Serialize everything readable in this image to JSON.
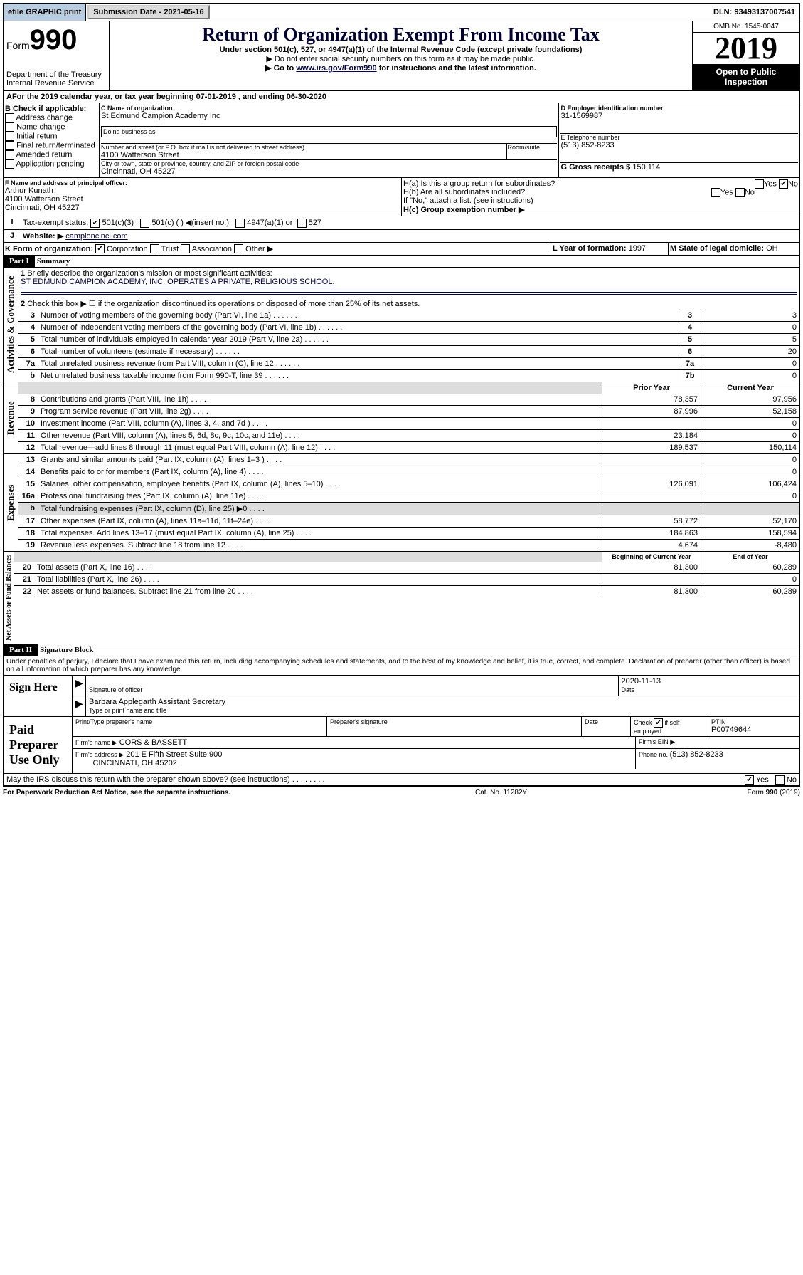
{
  "top": {
    "efile": "efile GRAPHIC print",
    "submission": "Submission Date - 2021-05-16",
    "dln": "DLN: 93493137007541"
  },
  "header": {
    "form_prefix": "Form",
    "form_no": "990",
    "dept": "Department of the Treasury\nInternal Revenue Service",
    "title": "Return of Organization Exempt From Income Tax",
    "under": "Under section 501(c), 527, or 4947(a)(1) of the Internal Revenue Code (except private foundations)",
    "note1": "▶ Do not enter social security numbers on this form as it may be made public.",
    "note2_pre": "▶ Go to ",
    "note2_link": "www.irs.gov/Form990",
    "note2_post": " for instructions and the latest information.",
    "omb": "OMB No. 1545-0047",
    "year": "2019",
    "inspect": "Open to Public Inspection"
  },
  "A": {
    "text_pre": "For the 2019 calendar year, or tax year beginning ",
    "begin": "07-01-2019",
    "mid": " , and ending ",
    "end": "06-30-2020"
  },
  "B": {
    "label": "B Check if applicable:",
    "opts": [
      "Address change",
      "Name change",
      "Initial return",
      "Final return/terminated",
      "Amended return",
      "Application pending"
    ]
  },
  "C": {
    "label": "C Name of organization",
    "name": "St Edmund Campion Academy Inc",
    "dba_label": "Doing business as",
    "addr_label": "Number and street (or P.O. box if mail is not delivered to street address)",
    "room_label": "Room/suite",
    "addr": "4100 Watterson Street",
    "city_label": "City or town, state or province, country, and ZIP or foreign postal code",
    "city": "Cincinnati, OH  45227"
  },
  "D": {
    "label": "D Employer identification number",
    "val": "31-1569987"
  },
  "E": {
    "label": "E Telephone number",
    "val": "(513) 852-8233"
  },
  "G": {
    "label": "G Gross receipts $",
    "val": "150,114"
  },
  "F": {
    "label": "F  Name and address of principal officer:",
    "name": "Arthur Kunath",
    "addr": "4100 Watterson Street",
    "city": "Cincinnati, OH  45227"
  },
  "H": {
    "a": "H(a)  Is this a group return for subordinates?",
    "b": "H(b)  Are all subordinates included?",
    "b_note": "If \"No,\" attach a list. (see instructions)",
    "c": "H(c)  Group exemption number ▶"
  },
  "I": {
    "label": "Tax-exempt status:",
    "opts": [
      "501(c)(3)",
      "501(c) (   ) ◀(insert no.)",
      "4947(a)(1) or",
      "527"
    ]
  },
  "J": {
    "label": "Website: ▶",
    "val": "campioncinci.com"
  },
  "K": {
    "label": "K Form of organization:",
    "opts": [
      "Corporation",
      "Trust",
      "Association",
      "Other ▶"
    ]
  },
  "L": {
    "label": "L Year of formation:",
    "val": "1997"
  },
  "M": {
    "label": "M State of legal domicile:",
    "val": "OH"
  },
  "part1": {
    "hdr": "Part I",
    "title": "Summary"
  },
  "gov": {
    "label": "Activities & Governance",
    "l1": "Briefly describe the organization's mission or most significant activities:",
    "mission": "ST EDMUND CAMPION ACADEMY, INC. OPERATES A PRIVATE, RELIGIOUS SCHOOL.",
    "l2": "Check this box ▶ ☐  if the organization discontinued its operations or disposed of more than 25% of its net assets.",
    "rows": [
      {
        "n": "3",
        "t": "Number of voting members of the governing body (Part VI, line 1a)",
        "box": "3",
        "v": "3"
      },
      {
        "n": "4",
        "t": "Number of independent voting members of the governing body (Part VI, line 1b)",
        "box": "4",
        "v": "0"
      },
      {
        "n": "5",
        "t": "Total number of individuals employed in calendar year 2019 (Part V, line 2a)",
        "box": "5",
        "v": "5"
      },
      {
        "n": "6",
        "t": "Total number of volunteers (estimate if necessary)",
        "box": "6",
        "v": "20"
      },
      {
        "n": "7a",
        "t": "Total unrelated business revenue from Part VIII, column (C), line 12",
        "box": "7a",
        "v": "0"
      },
      {
        "n": "b",
        "t": "Net unrelated business taxable income from Form 990-T, line 39",
        "box": "7b",
        "v": "0"
      }
    ]
  },
  "rev": {
    "label": "Revenue",
    "hdr_prior": "Prior Year",
    "hdr_curr": "Current Year",
    "rows": [
      {
        "n": "8",
        "t": "Contributions and grants (Part VIII, line 1h)",
        "p": "78,357",
        "c": "97,956"
      },
      {
        "n": "9",
        "t": "Program service revenue (Part VIII, line 2g)",
        "p": "87,996",
        "c": "52,158"
      },
      {
        "n": "10",
        "t": "Investment income (Part VIII, column (A), lines 3, 4, and 7d )",
        "p": "",
        "c": "0"
      },
      {
        "n": "11",
        "t": "Other revenue (Part VIII, column (A), lines 5, 6d, 8c, 9c, 10c, and 11e)",
        "p": "23,184",
        "c": "0"
      },
      {
        "n": "12",
        "t": "Total revenue—add lines 8 through 11 (must equal Part VIII, column (A), line 12)",
        "p": "189,537",
        "c": "150,114"
      }
    ]
  },
  "exp": {
    "label": "Expenses",
    "rows": [
      {
        "n": "13",
        "t": "Grants and similar amounts paid (Part IX, column (A), lines 1–3 )",
        "p": "",
        "c": "0"
      },
      {
        "n": "14",
        "t": "Benefits paid to or for members (Part IX, column (A), line 4)",
        "p": "",
        "c": "0"
      },
      {
        "n": "15",
        "t": "Salaries, other compensation, employee benefits (Part IX, column (A), lines 5–10)",
        "p": "126,091",
        "c": "106,424"
      },
      {
        "n": "16a",
        "t": "Professional fundraising fees (Part IX, column (A), line 11e)",
        "p": "",
        "c": "0"
      },
      {
        "n": "b",
        "t": "Total fundraising expenses (Part IX, column (D), line 25) ▶0",
        "p": "",
        "c": "",
        "grey": true
      },
      {
        "n": "17",
        "t": "Other expenses (Part IX, column (A), lines 11a–11d, 11f–24e)",
        "p": "58,772",
        "c": "52,170"
      },
      {
        "n": "18",
        "t": "Total expenses. Add lines 13–17 (must equal Part IX, column (A), line 25)",
        "p": "184,863",
        "c": "158,594"
      },
      {
        "n": "19",
        "t": "Revenue less expenses. Subtract line 18 from line 12",
        "p": "4,674",
        "c": "-8,480"
      }
    ]
  },
  "net": {
    "label": "Net Assets or Fund Balances",
    "hdr_prior": "Beginning of Current Year",
    "hdr_curr": "End of Year",
    "rows": [
      {
        "n": "20",
        "t": "Total assets (Part X, line 16)",
        "p": "81,300",
        "c": "60,289"
      },
      {
        "n": "21",
        "t": "Total liabilities (Part X, line 26)",
        "p": "",
        "c": "0"
      },
      {
        "n": "22",
        "t": "Net assets or fund balances. Subtract line 21 from line 20",
        "p": "81,300",
        "c": "60,289"
      }
    ]
  },
  "part2": {
    "hdr": "Part II",
    "title": "Signature Block"
  },
  "perjury": "Under penalties of perjury, I declare that I have examined this return, including accompanying schedules and statements, and to the best of my knowledge and belief, it is true, correct, and complete. Declaration of preparer (other than officer) is based on all information of which preparer has any knowledge.",
  "sign": {
    "label": "Sign Here",
    "sig_label": "Signature of officer",
    "date": "2020-11-13",
    "date_label": "Date",
    "name": "Barbara Applegarth  Assistant Secretary",
    "name_label": "Type or print name and title"
  },
  "paid": {
    "label": "Paid Preparer Use Only",
    "h1": "Print/Type preparer's name",
    "h2": "Preparer's signature",
    "h3": "Date",
    "check_label": "Check",
    "if_label": "if self-employed",
    "ptin_label": "PTIN",
    "ptin": "P00749644",
    "firm_name_label": "Firm's name   ▶",
    "firm_name": "CORS & BASSETT",
    "firm_ein_label": "Firm's EIN ▶",
    "firm_addr_label": "Firm's address ▶",
    "firm_addr": "201 E Fifth Street Suite 900",
    "firm_city": "CINCINNATI, OH  45202",
    "phone_label": "Phone no.",
    "phone": "(513) 852-8233"
  },
  "discuss": "May the IRS discuss this return with the preparer shown above? (see instructions)",
  "foot": {
    "l": "For Paperwork Reduction Act Notice, see the separate instructions.",
    "m": "Cat. No. 11282Y",
    "r": "Form 990 (2019)"
  }
}
